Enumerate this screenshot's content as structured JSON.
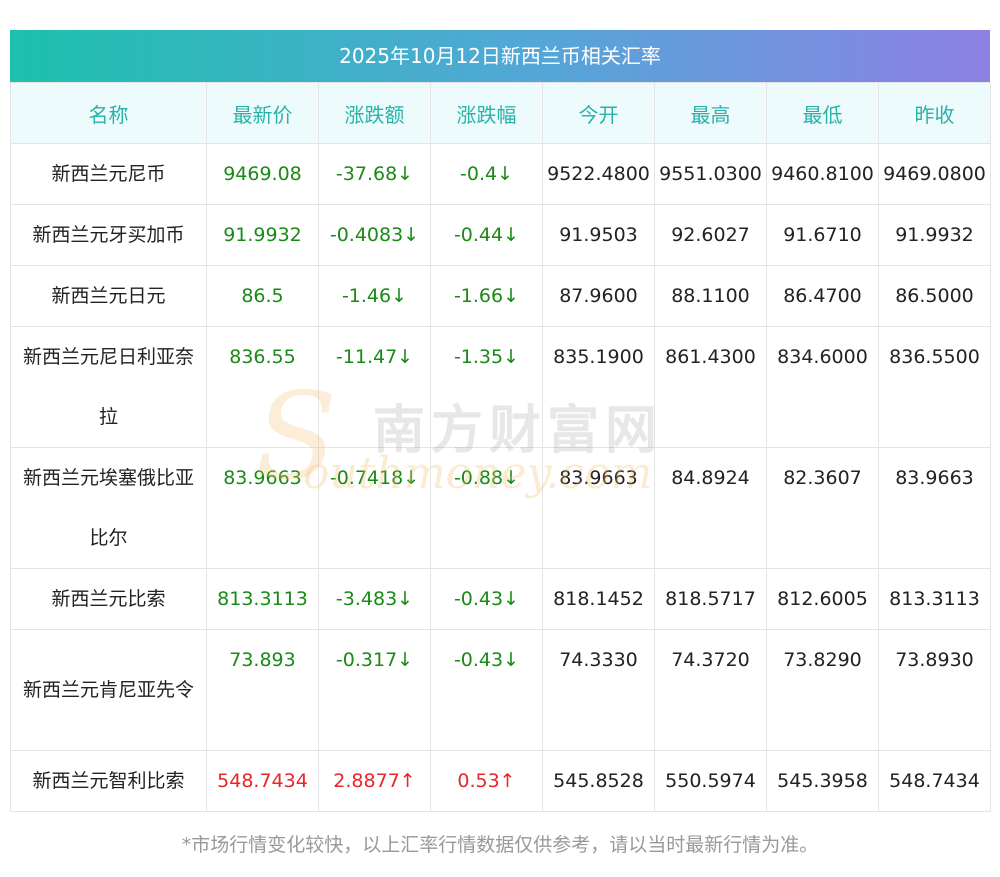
{
  "title": "2025年10月12日新西兰币相关汇率",
  "headers": [
    "名称",
    "最新价",
    "涨跌额",
    "涨跌幅",
    "今开",
    "最高",
    "最低",
    "昨收"
  ],
  "rows": [
    {
      "name": "新西兰元尼币",
      "latest": "9469.08",
      "change": "-37.68↓",
      "pct": "-0.4↓",
      "open": "9522.4800",
      "high": "9551.0300",
      "low": "9460.8100",
      "prev": "9469.0800",
      "dir": "down"
    },
    {
      "name": "新西兰元牙买加币",
      "latest": "91.9932",
      "change": "-0.4083↓",
      "pct": "-0.44↓",
      "open": "91.9503",
      "high": "92.6027",
      "low": "91.6710",
      "prev": "91.9932",
      "dir": "down"
    },
    {
      "name": "新西兰元日元",
      "latest": "86.5",
      "change": "-1.46↓",
      "pct": "-1.66↓",
      "open": "87.9600",
      "high": "88.1100",
      "low": "86.4700",
      "prev": "86.5000",
      "dir": "down"
    },
    {
      "name": "新西兰元尼日利亚奈拉",
      "latest": "836.55",
      "change": "-11.47↓",
      "pct": "-1.35↓",
      "open": "835.1900",
      "high": "861.4300",
      "low": "834.6000",
      "prev": "836.5500",
      "dir": "down"
    },
    {
      "name": "新西兰元埃塞俄比亚比尔",
      "latest": "83.9663",
      "change": "-0.7418↓",
      "pct": "-0.88↓",
      "open": "83.9663",
      "high": "84.8924",
      "low": "82.3607",
      "prev": "83.9663",
      "dir": "down"
    },
    {
      "name": "新西兰元比索",
      "latest": "813.3113",
      "change": "-3.483↓",
      "pct": "-0.43↓",
      "open": "818.1452",
      "high": "818.5717",
      "low": "812.6005",
      "prev": "813.3113",
      "dir": "down"
    },
    {
      "name": "新西兰元肯尼亚先令",
      "latest": "73.893",
      "change": "-0.317↓",
      "pct": "-0.43↓",
      "open": "74.3330",
      "high": "74.3720",
      "low": "73.8290",
      "prev": "73.8930",
      "dir": "down"
    },
    {
      "name": "新西兰元智利比索",
      "latest": "548.7434",
      "change": "2.8877↑",
      "pct": "0.53↑",
      "open": "545.8528",
      "high": "550.5974",
      "low": "545.3958",
      "prev": "548.7434",
      "dir": "up"
    }
  ],
  "watermark": {
    "cn": "南方财富网",
    "en": "outhmoney.com",
    "s": "S"
  },
  "footnote": "*市场行情变化较快，以上汇率行情数据仅供参考，请以当时最新行情为准。",
  "colors": {
    "down": "#1a8a16",
    "up": "#e8252a",
    "header_text": "#27b3a9",
    "title_grad_start": "#1dc0ad",
    "title_grad_end": "#8d80e4"
  }
}
